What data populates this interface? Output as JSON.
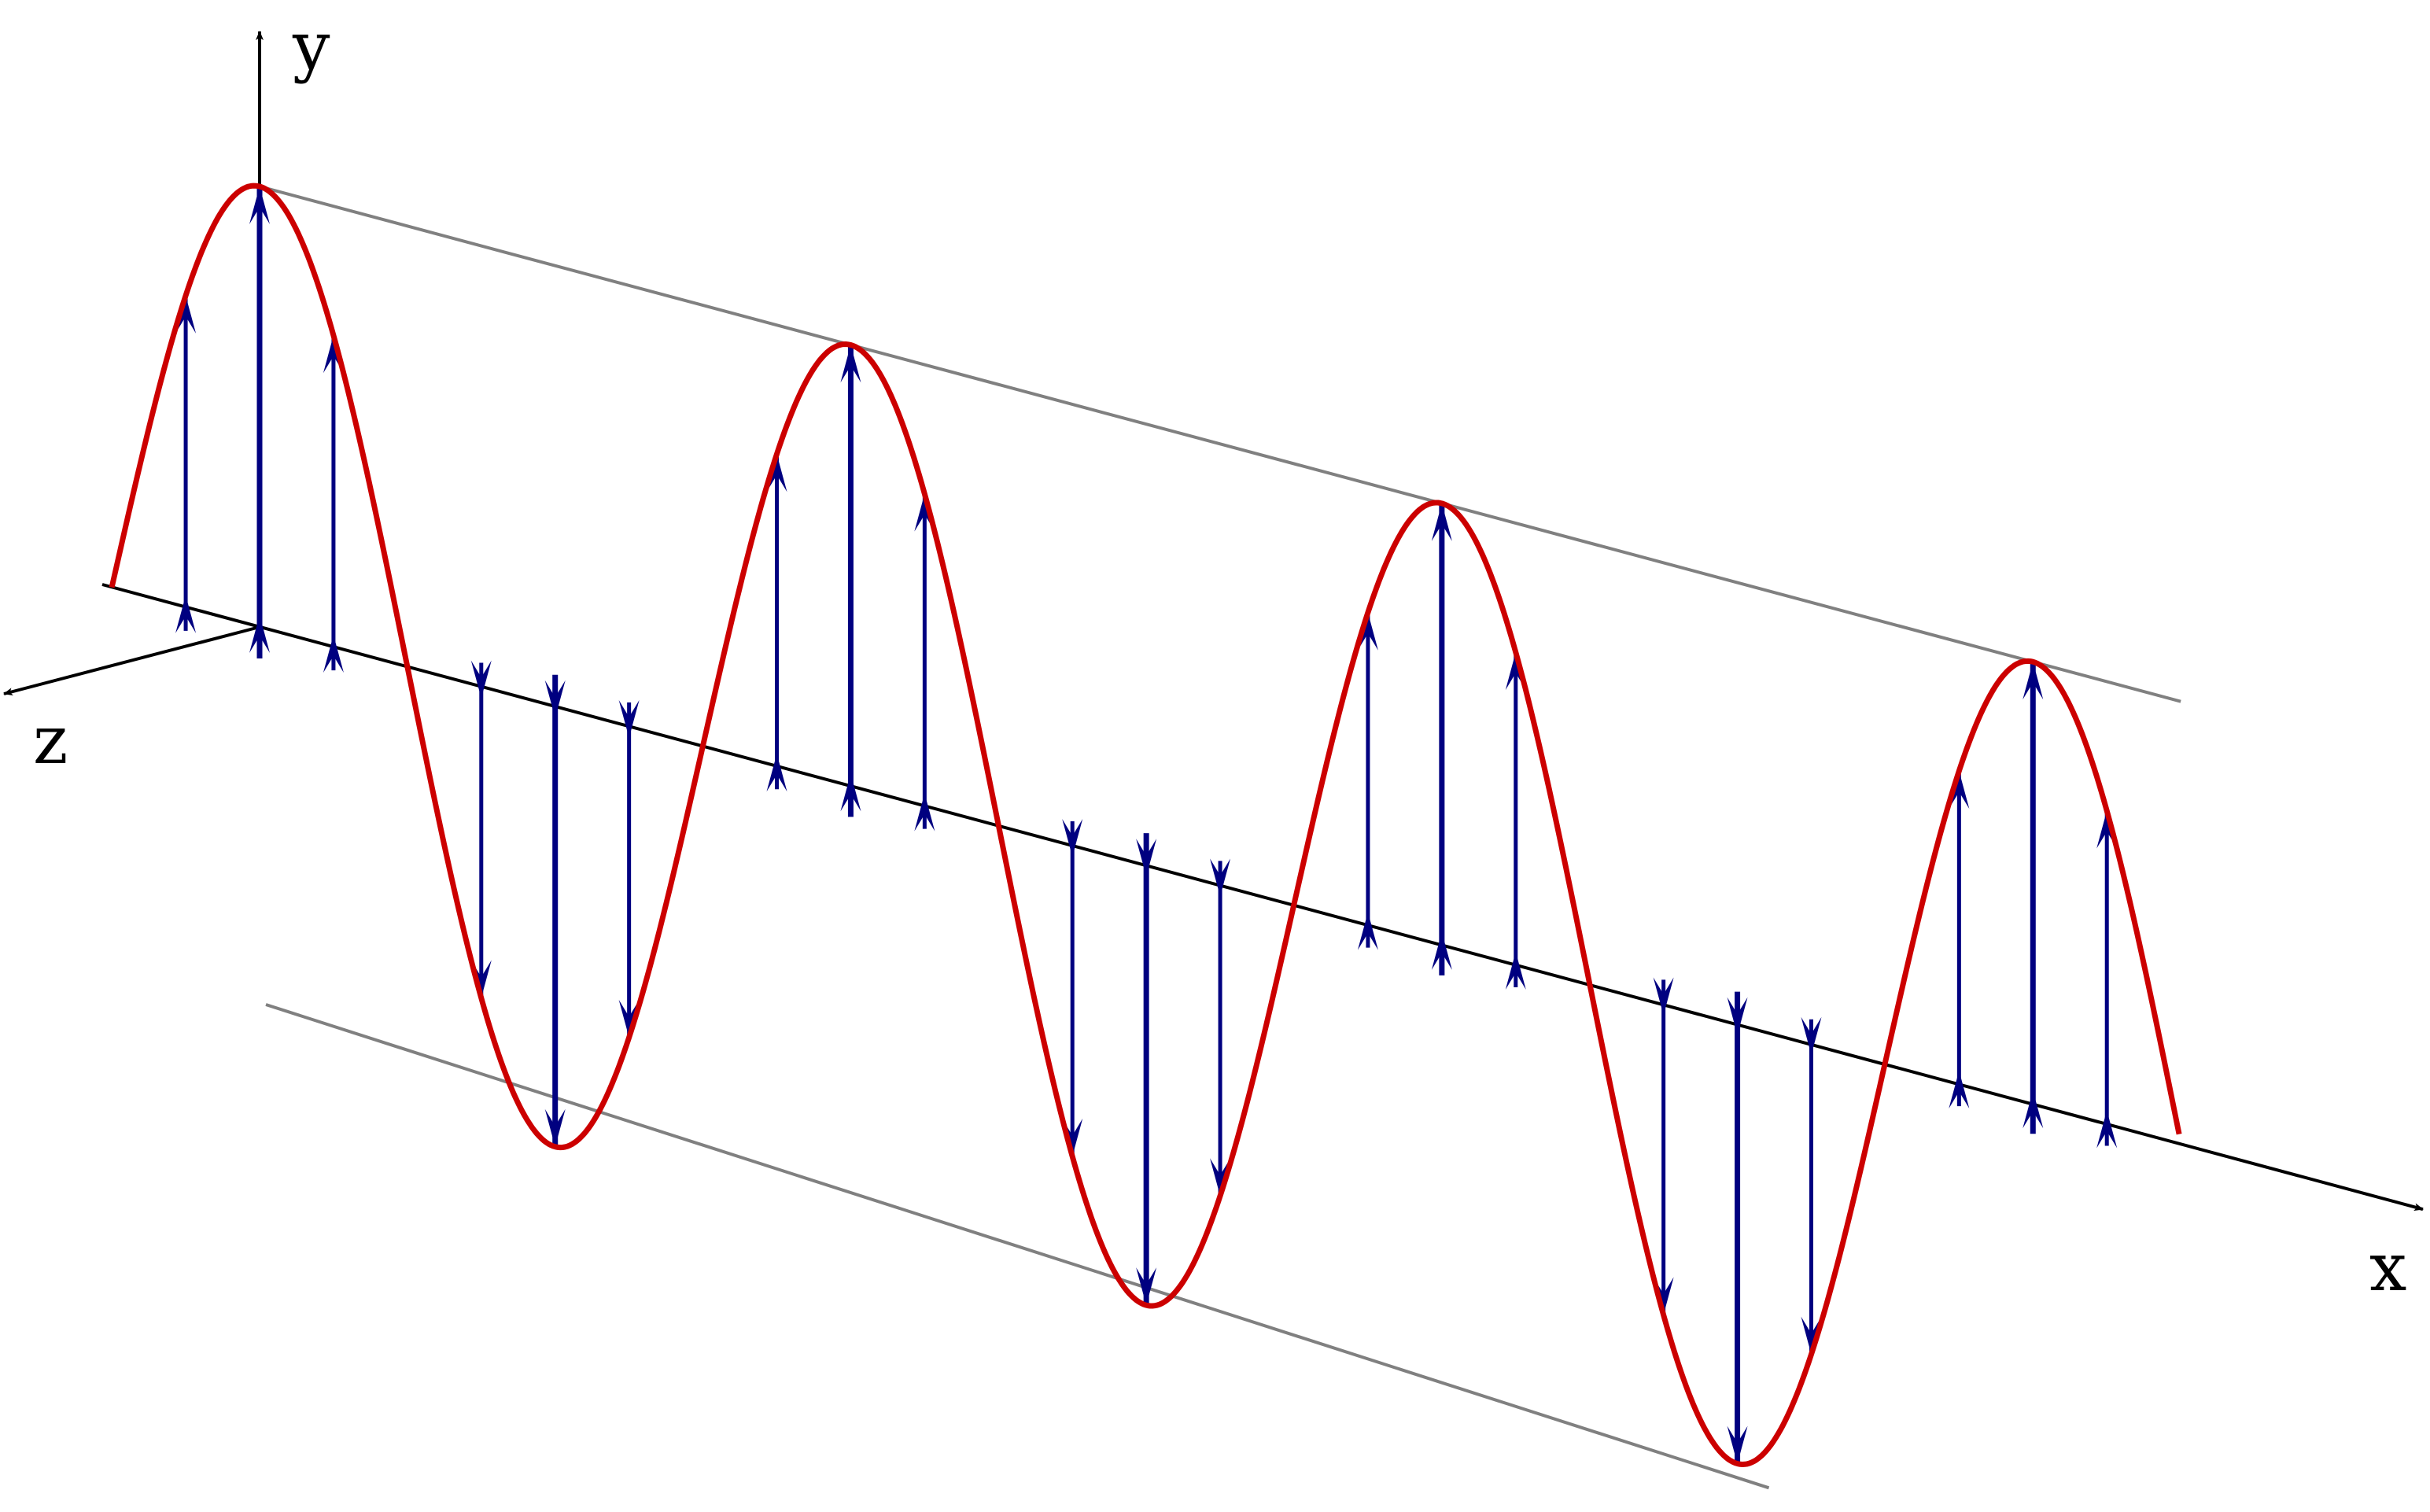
{
  "figure": {
    "description_free": true,
    "axes": {
      "x_label": "x",
      "y_label": "y",
      "z_label": "z"
    },
    "wave": {
      "periods": 3.5,
      "vectors_per_lobe": 3,
      "vector_relative_heights": [
        0.707,
        1.0,
        0.707
      ]
    },
    "colors": {
      "wave": "#cc0000",
      "vectors": "#000080",
      "axes": "#000000",
      "envelope": "#808080",
      "background": "#ffffff"
    }
  }
}
